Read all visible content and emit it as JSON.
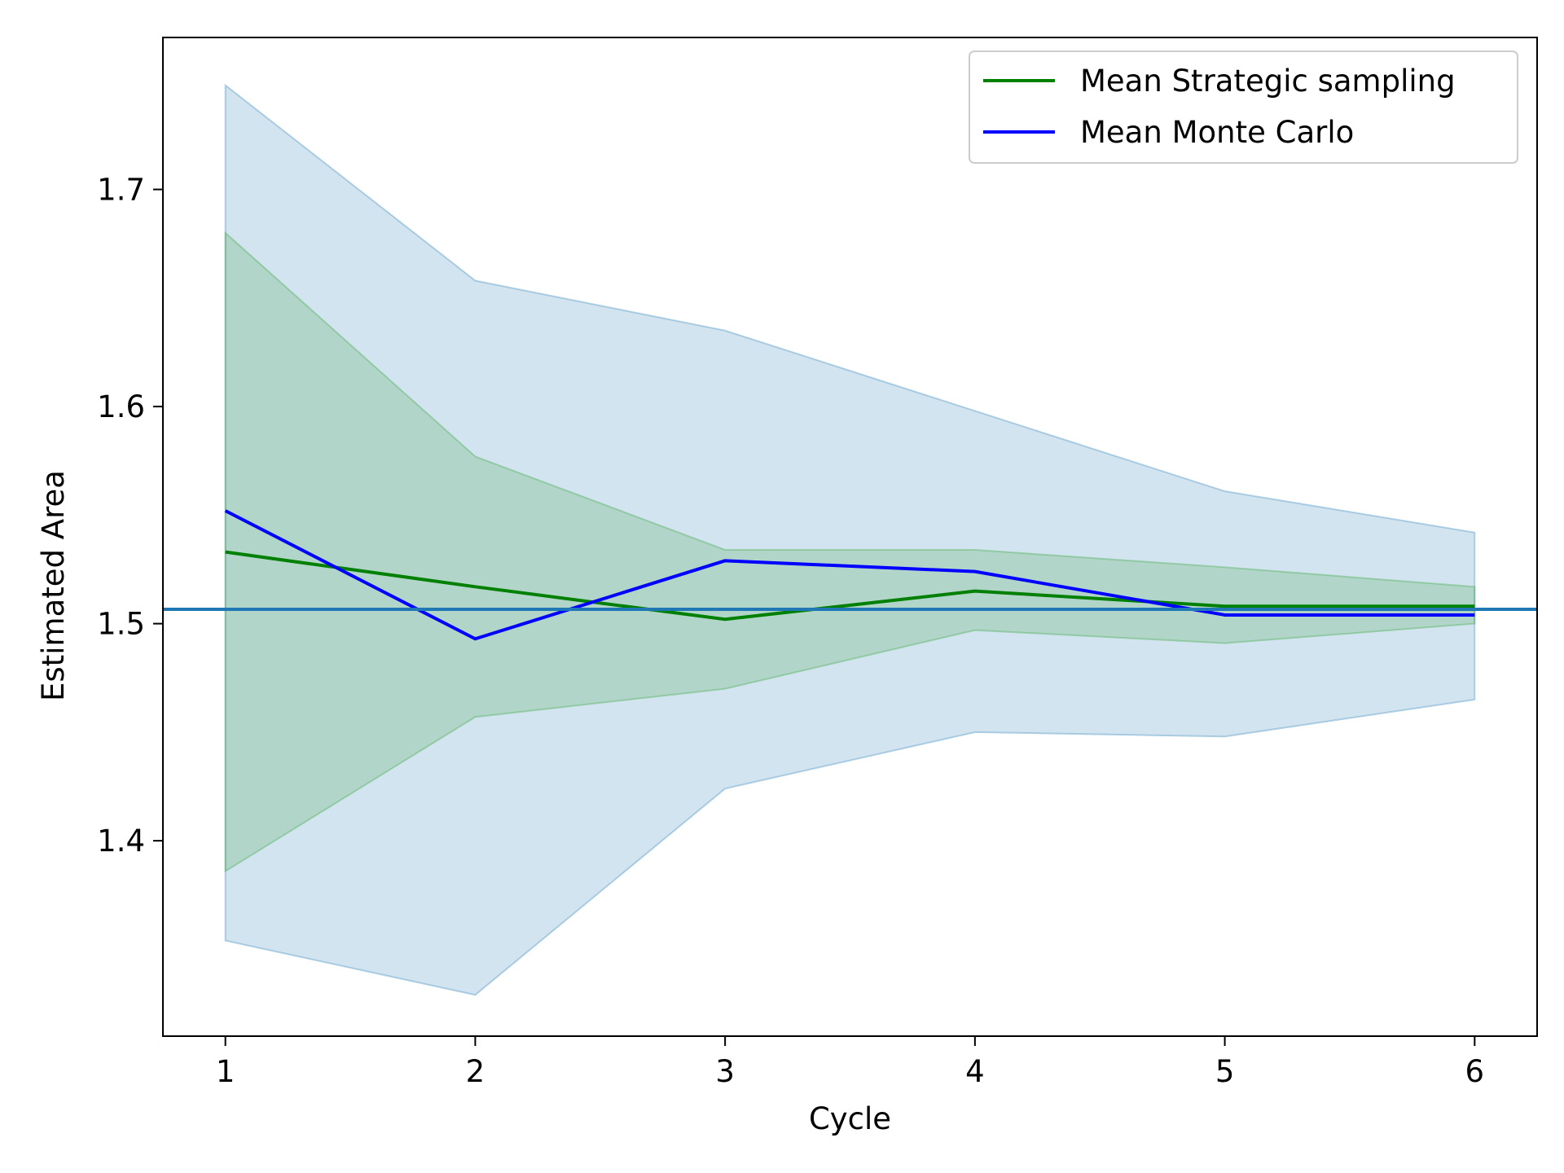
{
  "chart_data": {
    "type": "line",
    "title": "",
    "xlabel": "Cycle",
    "ylabel": "Estimated Area",
    "x": [
      1,
      2,
      3,
      4,
      5,
      6
    ],
    "xticks": [
      "1",
      "2",
      "3",
      "4",
      "5",
      "6"
    ],
    "yticks": [
      "1.4",
      "1.5",
      "1.6",
      "1.7"
    ],
    "xlim": [
      0.75,
      6.25
    ],
    "ylim": [
      1.31,
      1.77
    ],
    "grid": false,
    "legend_position": "top-right",
    "series": [
      {
        "name": "Mean Strategic sampling",
        "color": "#008000",
        "values": [
          1.533,
          1.517,
          1.502,
          1.515,
          1.508,
          1.508
        ]
      },
      {
        "name": "Mean Monte Carlo",
        "color": "#0000ff",
        "values": [
          1.552,
          1.493,
          1.529,
          1.524,
          1.504,
          1.504
        ]
      }
    ],
    "bands": [
      {
        "series": "Mean Monte Carlo",
        "color": "#1f77b4",
        "opacity": 0.2,
        "lower": [
          1.354,
          1.329,
          1.424,
          1.45,
          1.448,
          1.465
        ],
        "upper": [
          1.748,
          1.658,
          1.635,
          1.598,
          1.561,
          1.542
        ]
      },
      {
        "series": "Mean Strategic sampling",
        "color": "#2ca02c",
        "opacity": 0.2,
        "lower": [
          1.386,
          1.457,
          1.47,
          1.497,
          1.491,
          1.5
        ],
        "upper": [
          1.68,
          1.577,
          1.534,
          1.534,
          1.526,
          1.517
        ]
      }
    ],
    "reference_line": {
      "y": 1.5066,
      "color": "#1f77b4"
    }
  }
}
